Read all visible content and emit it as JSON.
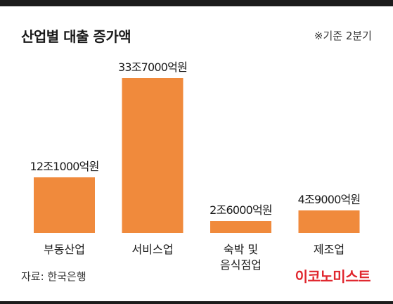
{
  "header": {
    "title": "산업별 대출 증가액",
    "note": "※기준 2분기"
  },
  "footer": {
    "source": "자료: 한국은행",
    "brand": "이코노미스트"
  },
  "colors": {
    "bar": "#f08a3c",
    "text": "#1a1a1a",
    "brand": "#e0262d",
    "band": "#1c1c1c"
  },
  "chart_data": {
    "type": "bar",
    "title": "산업별 대출 증가액",
    "unit": "억원",
    "categories": [
      [
        "부동산업"
      ],
      [
        "서비스업"
      ],
      [
        "숙박 및",
        "음식점업"
      ],
      [
        "제조업"
      ]
    ],
    "values": [
      121000,
      337000,
      26000,
      49000
    ],
    "data_labels": [
      "12조1000억원",
      "33조7000억원",
      "2조6000억원",
      "4조9000억원"
    ],
    "ylim": [
      0,
      337000
    ],
    "grid": false,
    "legend": "none"
  }
}
